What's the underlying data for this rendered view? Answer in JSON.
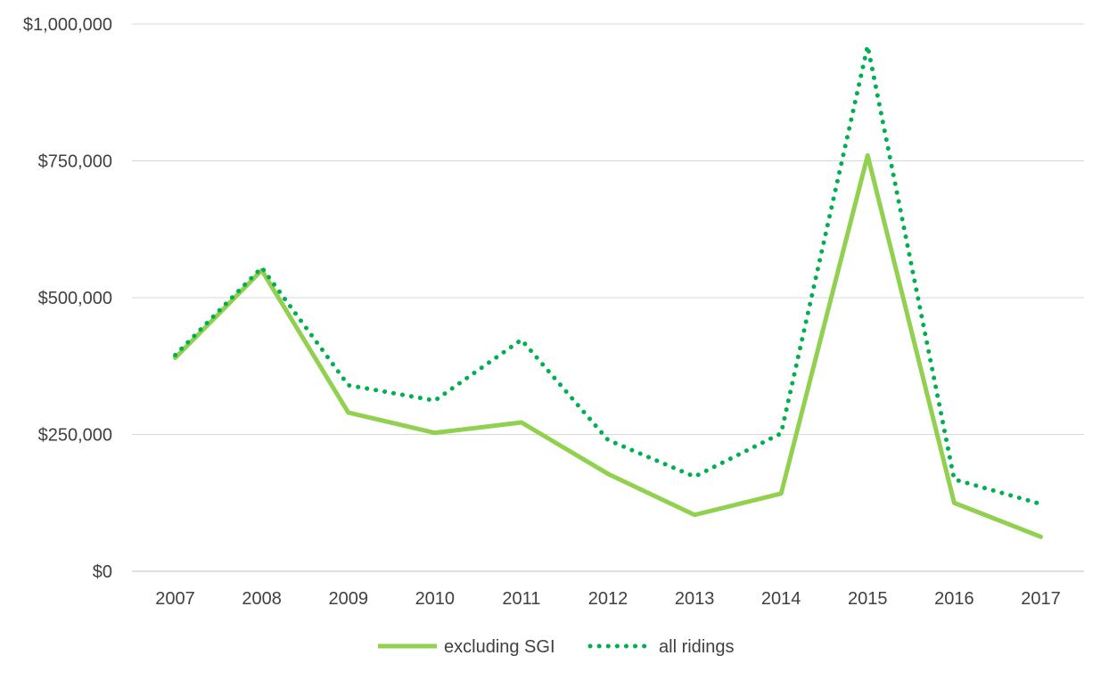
{
  "chart_data": {
    "type": "line",
    "title": "",
    "xlabel": "",
    "ylabel": "",
    "x": [
      "2007",
      "2008",
      "2009",
      "2010",
      "2011",
      "2012",
      "2013",
      "2014",
      "2015",
      "2016",
      "2017"
    ],
    "ylim": [
      0,
      1000000
    ],
    "yticks": [
      0,
      250000,
      500000,
      750000,
      1000000
    ],
    "ytick_labels": [
      "$0",
      "$250,000",
      "$500,000",
      "$750,000",
      "$1,000,000"
    ],
    "grid": true,
    "legend": "bottom",
    "series": [
      {
        "name": "excluding SGI",
        "style": "solid",
        "color": "#92d050",
        "values": [
          390000,
          550000,
          290000,
          253000,
          272000,
          178000,
          103000,
          142000,
          760000,
          125000,
          63000
        ]
      },
      {
        "name": "all ridings",
        "style": "dotted",
        "color": "#00b050",
        "values": [
          395000,
          555000,
          340000,
          312000,
          423000,
          240000,
          173000,
          252000,
          960000,
          168000,
          123000
        ]
      }
    ]
  }
}
